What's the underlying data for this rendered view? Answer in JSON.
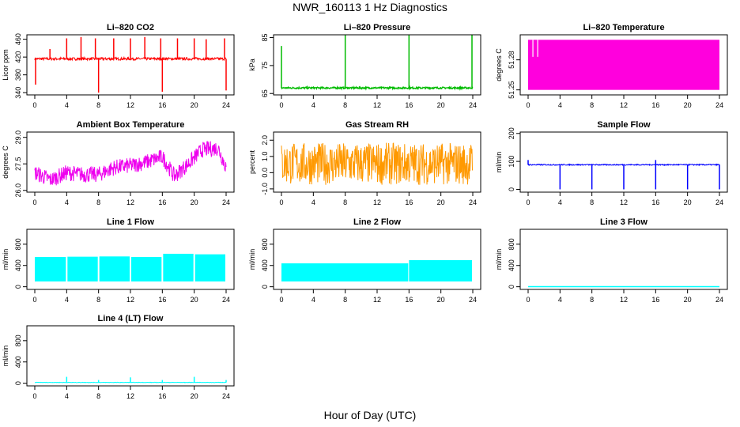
{
  "title": "NWR_160113  1 Hz Diagnostics",
  "xlabel": "Hour of Day (UTC)",
  "chart_data": [
    {
      "type": "line",
      "title": "Li–820 CO2",
      "ylabel": "Licor ppm",
      "color": "#ff0000",
      "xlim": [
        0,
        24
      ],
      "ylim": [
        335,
        470
      ],
      "yticks": [
        "340",
        "380",
        "420",
        "460"
      ],
      "ytick_values": [
        340,
        380,
        420,
        460
      ],
      "xticks": [
        "0",
        "4",
        "8",
        "12",
        "16",
        "20",
        "24"
      ],
      "baseline": 416,
      "noise": 3,
      "spikes": [
        [
          0.1,
          358
        ],
        [
          1.9,
          438
        ],
        [
          4.0,
          462
        ],
        [
          5.8,
          465
        ],
        [
          7.6,
          462
        ],
        [
          8.0,
          340
        ],
        [
          9.9,
          462
        ],
        [
          12.0,
          462
        ],
        [
          13.8,
          465
        ],
        [
          15.8,
          462
        ],
        [
          16.0,
          342
        ],
        [
          17.9,
          462
        ],
        [
          20.0,
          462
        ],
        [
          21.5,
          460
        ],
        [
          23.8,
          462
        ],
        [
          24.0,
          345
        ]
      ]
    },
    {
      "type": "line",
      "title": "Li–820 Pressure",
      "ylabel": "kPa",
      "color": "#00bb00",
      "xlim": [
        0,
        24
      ],
      "ylim": [
        64.5,
        86
      ],
      "yticks": [
        "65",
        "75",
        "85"
      ],
      "ytick_values": [
        65,
        75,
        85
      ],
      "xticks": [
        "0",
        "4",
        "8",
        "12",
        "16",
        "20",
        "24"
      ],
      "baseline": 67,
      "noise": 0.3,
      "spikes": [
        [
          0.0,
          82
        ],
        [
          8.0,
          86
        ],
        [
          16.0,
          86
        ],
        [
          23.9,
          86
        ]
      ]
    },
    {
      "type": "area",
      "title": "Li–820 Temperature",
      "ylabel": "degrees C",
      "color": "#ff00dd",
      "xlim": [
        0,
        24
      ],
      "ylim": [
        51.245,
        51.305
      ],
      "yticks": [
        "51.25",
        "51.28"
      ],
      "ytick_values": [
        51.25,
        51.28
      ],
      "xticks": [
        "0",
        "4",
        "8",
        "12",
        "16",
        "20",
        "24"
      ],
      "band": [
        51.25,
        51.3
      ]
    },
    {
      "type": "line",
      "title": "Ambient Box Temperature",
      "ylabel": "degrees C",
      "color": "#ee00ee",
      "xlim": [
        0,
        24
      ],
      "ylim": [
        25.9,
        29.3
      ],
      "yticks": [
        "26.0",
        "27.5",
        "29.0"
      ],
      "ytick_values": [
        26.0,
        27.5,
        29.0
      ],
      "xticks": [
        "0",
        "4",
        "8",
        "12",
        "16",
        "20",
        "24"
      ],
      "trend": [
        [
          0,
          27.0
        ],
        [
          2,
          26.6
        ],
        [
          4,
          27.0
        ],
        [
          6,
          26.9
        ],
        [
          8,
          26.9
        ],
        [
          10,
          27.3
        ],
        [
          12,
          27.4
        ],
        [
          14,
          27.6
        ],
        [
          16,
          27.9
        ],
        [
          17.5,
          26.8
        ],
        [
          19,
          27.4
        ],
        [
          21,
          28.3
        ],
        [
          23,
          28.4
        ],
        [
          24,
          27.3
        ]
      ],
      "noise": 0.45
    },
    {
      "type": "line",
      "title": "Gas Stream RH",
      "ylabel": "percent",
      "color": "#ff9900",
      "xlim": [
        0,
        24
      ],
      "ylim": [
        -1.2,
        2.5
      ],
      "yticks": [
        "-1.0",
        "0.0",
        "1.0",
        "2.0"
      ],
      "ytick_values": [
        -1,
        0,
        1,
        2
      ],
      "xticks": [
        "0",
        "4",
        "8",
        "12",
        "16",
        "20",
        "24"
      ],
      "baseline": 0.55,
      "noise": 1.3
    },
    {
      "type": "line",
      "title": "Sample Flow",
      "ylabel": "ml/min",
      "color": "#0000ff",
      "xlim": [
        0,
        24
      ],
      "ylim": [
        -10,
        205
      ],
      "yticks": [
        "0",
        "100",
        "200"
      ],
      "ytick_values": [
        0,
        100,
        200
      ],
      "xticks": [
        "0",
        "4",
        "8",
        "12",
        "16",
        "20",
        "24"
      ],
      "baseline": 88,
      "noise": 2,
      "spikes": [
        [
          0.0,
          105
        ],
        [
          4.0,
          0
        ],
        [
          8.0,
          0
        ],
        [
          12.0,
          0
        ],
        [
          16.0,
          0
        ],
        [
          16.0,
          105
        ],
        [
          20.0,
          0
        ],
        [
          24.0,
          0
        ]
      ]
    },
    {
      "type": "area",
      "title": "Line 1 Flow",
      "ylabel": "ml/min",
      "color": "#00ffff",
      "xlim": [
        0,
        24
      ],
      "ylim": [
        -50,
        1080
      ],
      "yticks": [
        "0",
        "400",
        "800"
      ],
      "ytick_values": [
        0,
        400,
        800
      ],
      "xticks": [
        "0",
        "4",
        "8",
        "12",
        "16",
        "20",
        "24"
      ],
      "band_segments": [
        [
          0.0,
          4.0,
          100,
          560
        ],
        [
          4.1,
          8.0,
          100,
          565
        ],
        [
          8.1,
          12.0,
          100,
          570
        ],
        [
          12.1,
          16.0,
          100,
          560
        ],
        [
          16.1,
          20.0,
          100,
          620
        ],
        [
          20.1,
          24.0,
          100,
          610
        ]
      ]
    },
    {
      "type": "area",
      "title": "Line 2 Flow",
      "ylabel": "ml/min",
      "color": "#00ffff",
      "xlim": [
        0,
        24
      ],
      "ylim": [
        -50,
        1080
      ],
      "yticks": [
        "0",
        "400",
        "800"
      ],
      "ytick_values": [
        0,
        400,
        800
      ],
      "xticks": [
        "0",
        "4",
        "8",
        "12",
        "16",
        "20",
        "24"
      ],
      "band_segments": [
        [
          0.0,
          16.0,
          100,
          440
        ],
        [
          16.0,
          24.0,
          100,
          500
        ]
      ]
    },
    {
      "type": "line",
      "title": "Line 3 Flow",
      "ylabel": "ml/min",
      "color": "#00ffff",
      "xlim": [
        0,
        24
      ],
      "ylim": [
        -50,
        1080
      ],
      "yticks": [
        "0",
        "400",
        "800"
      ],
      "ytick_values": [
        0,
        400,
        800
      ],
      "xticks": [
        "0",
        "4",
        "8",
        "12",
        "16",
        "20",
        "24"
      ],
      "baseline": 2,
      "noise": 0
    },
    {
      "type": "line",
      "title": "Line 4 (LT) Flow",
      "ylabel": "ml/min",
      "color": "#00ffff",
      "xlim": [
        0,
        24
      ],
      "ylim": [
        -50,
        1080
      ],
      "yticks": [
        "0",
        "400",
        "800"
      ],
      "ytick_values": [
        0,
        400,
        800
      ],
      "xticks": [
        "0",
        "4",
        "8",
        "12",
        "16",
        "20",
        "24"
      ],
      "baseline": 15,
      "noise": 4,
      "spikes": [
        [
          4.0,
          120
        ],
        [
          8.0,
          60
        ],
        [
          12.0,
          110
        ],
        [
          16.0,
          60
        ],
        [
          20.0,
          120
        ],
        [
          24.0,
          60
        ]
      ]
    }
  ]
}
